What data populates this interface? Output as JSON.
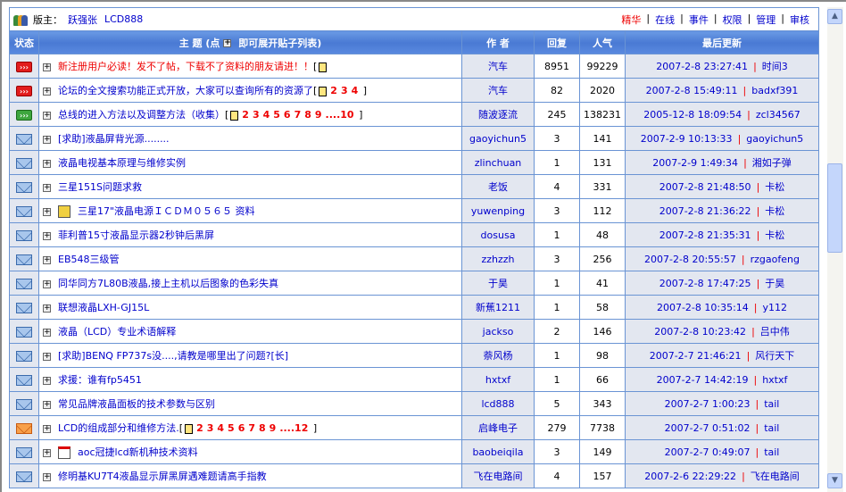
{
  "header": {
    "moderator_label": "版主：",
    "moderators": [
      "跃强张",
      "LCD888"
    ],
    "links": [
      {
        "label": "精华",
        "hot": true
      },
      {
        "label": "在线"
      },
      {
        "label": "事件"
      },
      {
        "label": "权限"
      },
      {
        "label": "管理"
      },
      {
        "label": "审核"
      }
    ]
  },
  "columns": {
    "status": "状态",
    "topic": "主 题 (点",
    "topic_suffix": "即可展开贴子列表)",
    "author": "作 者",
    "replies": "回复",
    "views": "人气",
    "last": "最后更新"
  },
  "rows": [
    {
      "status": "hot-red",
      "title": "新注册用户必读！发不了帖，下载不了资料的朋友请进！！",
      "red": true,
      "pages": [],
      "author": "汽车",
      "replies": "8951",
      "views": "99229",
      "date": "2007-2-8 23:27:41",
      "last_user": "时间3"
    },
    {
      "status": "hot-red",
      "title": "论坛的全文搜索功能正式开放，大家可以查询所有的资源了",
      "pages": [
        "2",
        "3",
        "4"
      ],
      "author": "汽车",
      "replies": "82",
      "views": "2020",
      "date": "2007-2-8 15:49:11",
      "last_user": "badxf391"
    },
    {
      "status": "hot-green",
      "title": "总线的进入方法以及调整方法（收集）",
      "pages": [
        "2",
        "3",
        "4",
        "5",
        "6",
        "7",
        "8",
        "9",
        "....10"
      ],
      "author": "随波逐流",
      "replies": "245",
      "views": "138231",
      "date": "2005-12-8 18:09:54",
      "last_user": "zcl34567"
    },
    {
      "status": "mail",
      "title": "[求助]液晶屏背光源........",
      "author": "gaoyichun5",
      "replies": "3",
      "views": "141",
      "date": "2007-2-9 10:13:33",
      "last_user": "gaoyichun5"
    },
    {
      "status": "mail",
      "title": "液晶电视基本原理与维修实例",
      "author": "zlinchuan",
      "replies": "1",
      "views": "131",
      "date": "2007-2-9 1:49:34",
      "last_user": "湘如子弹"
    },
    {
      "status": "mail",
      "title": "三星151S问题求救",
      "author": "老饭",
      "replies": "4",
      "views": "331",
      "date": "2007-2-8 21:48:50",
      "last_user": "卡松"
    },
    {
      "status": "mail",
      "prefix": "folder-icon",
      "title": "三星17\"液晶电源ＩＣＤＭ０５６５ 资料",
      "author": "yuwenping",
      "replies": "3",
      "views": "112",
      "date": "2007-2-8 21:36:22",
      "last_user": "卡松"
    },
    {
      "status": "mail",
      "title": "菲利普15寸液晶显示器2秒钟后黑屏",
      "author": "dosusa",
      "replies": "1",
      "views": "48",
      "date": "2007-2-8 21:35:31",
      "last_user": "卡松"
    },
    {
      "status": "mail",
      "title": "EB548三级管",
      "author": "zzhzzh",
      "replies": "3",
      "views": "256",
      "date": "2007-2-8 20:55:57",
      "last_user": "rzgaofeng"
    },
    {
      "status": "mail",
      "title": "同华同方7L80B液晶,接上主机以后图象的色彩失真",
      "author": "于昊",
      "replies": "1",
      "views": "41",
      "date": "2007-2-8 17:47:25",
      "last_user": "于昊"
    },
    {
      "status": "mail",
      "title": "联想液晶LXH-GJ15L",
      "author": "新蕉1211",
      "replies": "1",
      "views": "58",
      "date": "2007-2-8 10:35:14",
      "last_user": "y112"
    },
    {
      "status": "mail",
      "title": "液晶（LCD）专业术语解释",
      "author": "jackso",
      "replies": "2",
      "views": "146",
      "date": "2007-2-8 10:23:42",
      "last_user": "吕中伟"
    },
    {
      "status": "mail",
      "title": "[求助]BENQ FP737s没....,请教是哪里出了问题?[长]",
      "author": "萘风杨",
      "replies": "1",
      "views": "98",
      "date": "2007-2-7 21:46:21",
      "last_user": "风行天下"
    },
    {
      "status": "mail",
      "title": "求援：谁有fp5451",
      "author": "hxtxf",
      "replies": "1",
      "views": "66",
      "date": "2007-2-7 14:42:19",
      "last_user": "hxtxf"
    },
    {
      "status": "mail",
      "title": "常见品牌液晶面板的技术参数与区别",
      "author": "lcd888",
      "replies": "5",
      "views": "343",
      "date": "2007-2-7 1:00:23",
      "last_user": "tail"
    },
    {
      "status": "mail-orange",
      "title": "LCD的组成部分和维修方法.",
      "pages": [
        "2",
        "3",
        "4",
        "5",
        "6",
        "7",
        "8",
        "9",
        "....12"
      ],
      "author": "启峰电子",
      "replies": "279",
      "views": "7738",
      "date": "2007-2-7 0:51:02",
      "last_user": "tail"
    },
    {
      "status": "mail",
      "prefix": "pdf-icon",
      "title": "aoc冠捷lcd新机种技术资料",
      "author": "baobeiqila",
      "replies": "3",
      "views": "149",
      "date": "2007-2-7 0:49:07",
      "last_user": "tail"
    },
    {
      "status": "mail",
      "title": "修明基KU7T4液晶显示屏黑屏遇难题请高手指教",
      "author": "飞在电路间",
      "replies": "4",
      "views": "157",
      "date": "2007-2-6 22:29:22",
      "last_user": "飞在电路间"
    }
  ],
  "colors": {
    "border": "#6a94d4",
    "link": "#0000cc",
    "hot": "#ee0000",
    "header": "#4a7ad4"
  }
}
